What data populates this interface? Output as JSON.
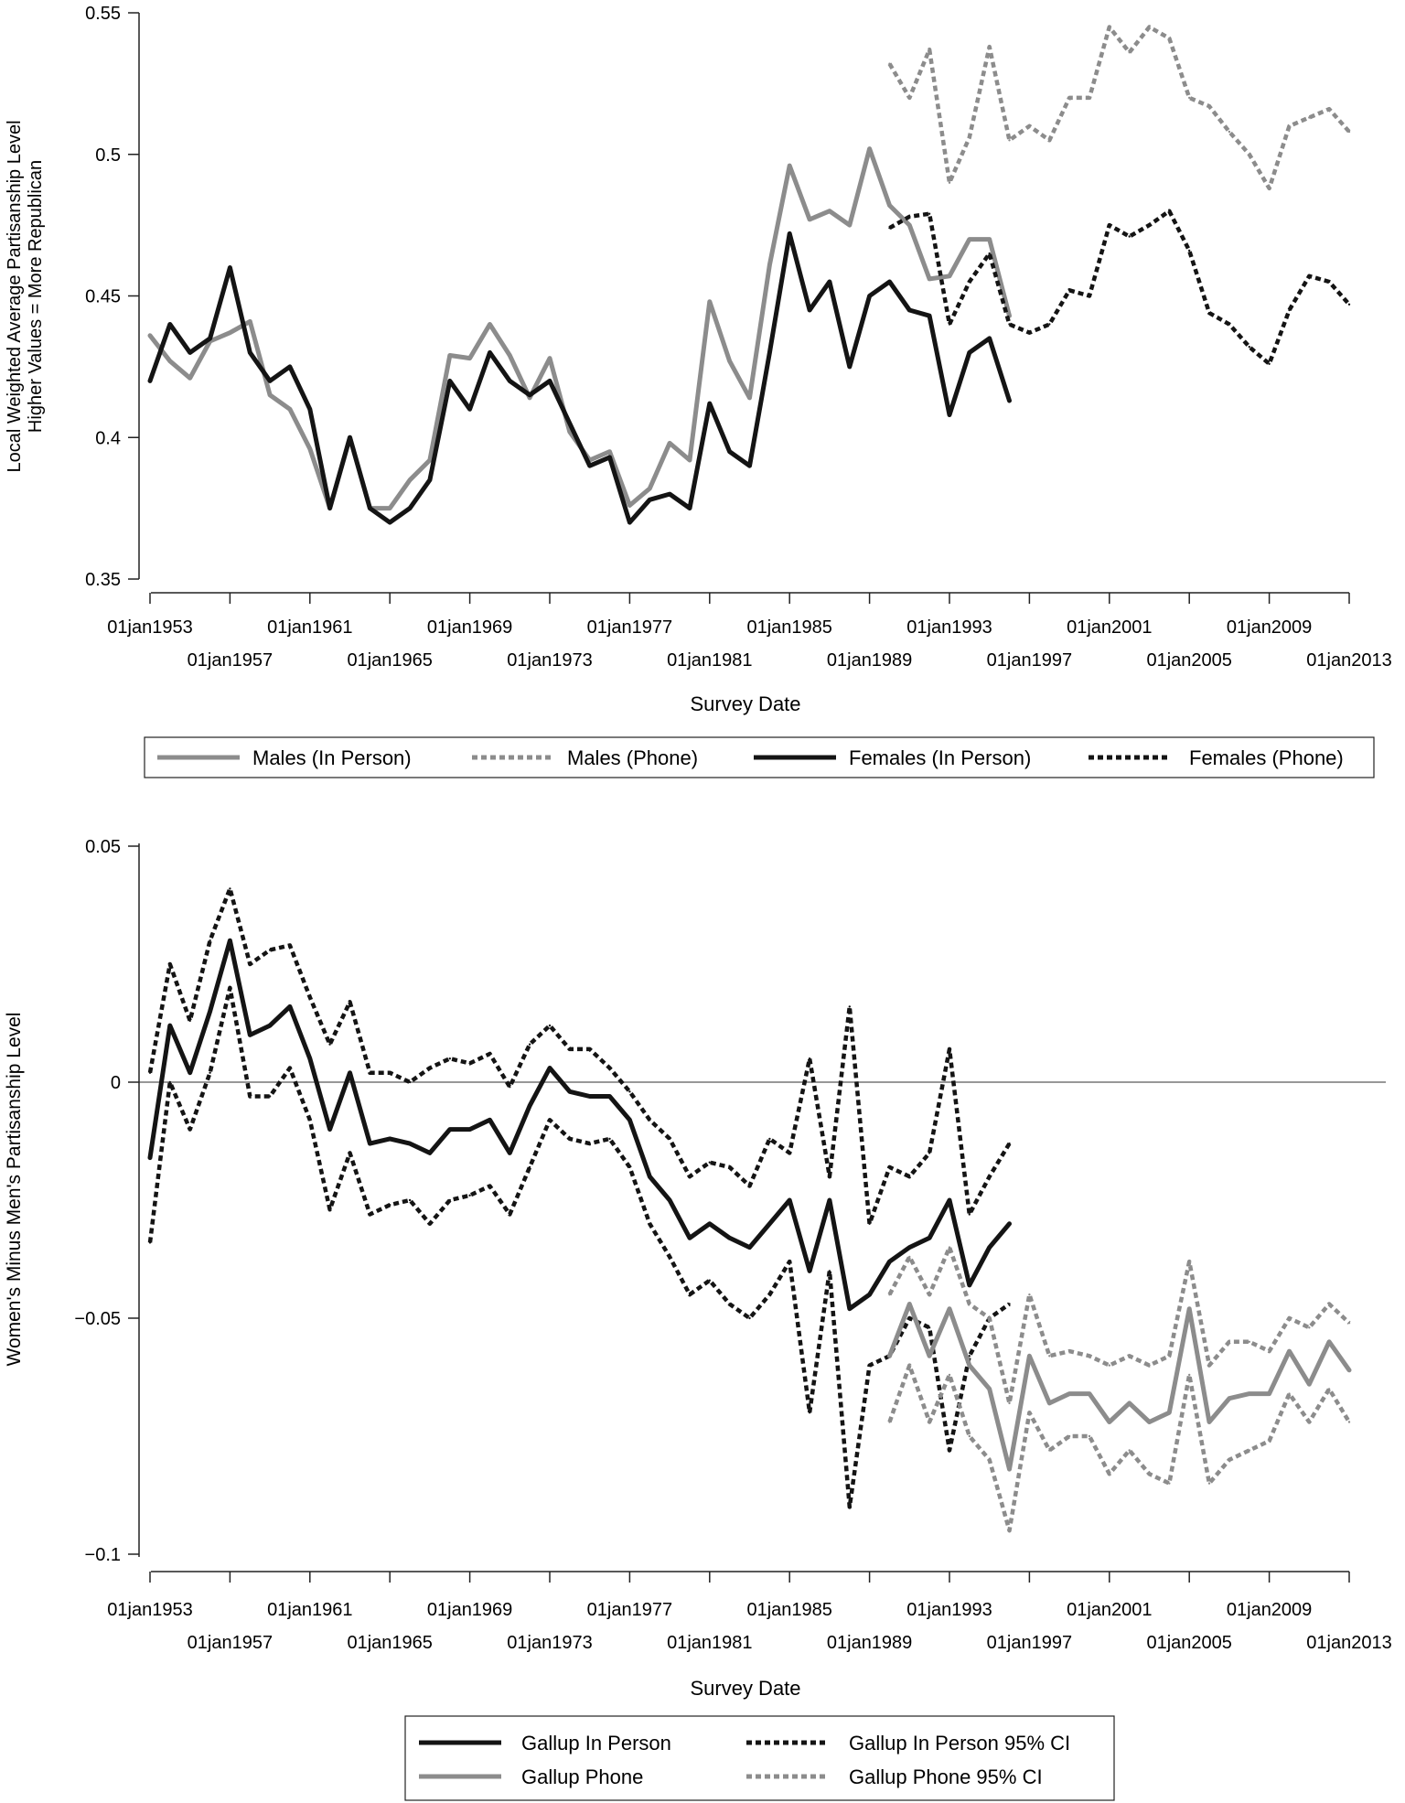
{
  "colors": {
    "gray": "#8c8c8c",
    "black": "#141414",
    "axis": "#222222",
    "zero_line": "#777777"
  },
  "chart_data": [
    {
      "type": "line",
      "title": "",
      "xlabel": "Survey Date",
      "ylabel_lines": [
        "Local Weighted Average Partisanship Level",
        "Higher Values = More Republican"
      ],
      "xlim": [
        1953,
        2013
      ],
      "ylim": [
        0.35,
        0.55
      ],
      "yticks": [
        0.35,
        0.4,
        0.45,
        0.5,
        0.55
      ],
      "ytick_labels": [
        "0.35",
        "0.4",
        "0.45",
        "0.5",
        "0.55"
      ],
      "xticks": [
        1953,
        1957,
        1961,
        1965,
        1969,
        1973,
        1977,
        1981,
        1985,
        1989,
        1993,
        1997,
        2001,
        2005,
        2009,
        2013
      ],
      "xtick_labels": [
        "01jan1953",
        "01jan1957",
        "01jan1961",
        "01jan1965",
        "01jan1969",
        "01jan1973",
        "01jan1977",
        "01jan1981",
        "01jan1985",
        "01jan1989",
        "01jan1993",
        "01jan1997",
        "01jan2001",
        "01jan2005",
        "01jan2009",
        "01jan2013"
      ],
      "legend_position": "bottom",
      "legend": [
        {
          "label": "Males (In Person)",
          "color": "gray",
          "style": "solid"
        },
        {
          "label": "Males (Phone)",
          "color": "gray",
          "style": "dotted"
        },
        {
          "label": "Females (In Person)",
          "color": "black",
          "style": "solid"
        },
        {
          "label": "Females (Phone)",
          "color": "black",
          "style": "dotted"
        }
      ],
      "series": [
        {
          "name": "Males (In Person)",
          "color": "gray",
          "style": "solid",
          "x": [
            1953,
            1954,
            1955,
            1956,
            1957,
            1958,
            1959,
            1960,
            1961,
            1962,
            1963,
            1964,
            1965,
            1966,
            1967,
            1968,
            1969,
            1970,
            1971,
            1972,
            1973,
            1974,
            1975,
            1976,
            1977,
            1978,
            1979,
            1980,
            1981,
            1982,
            1983,
            1984,
            1985,
            1986,
            1987,
            1988,
            1989,
            1990,
            1991,
            1992,
            1993,
            1994,
            1995,
            1996
          ],
          "y": [
            0.436,
            0.427,
            0.421,
            0.434,
            0.437,
            0.441,
            0.415,
            0.41,
            0.396,
            0.375,
            0.4,
            0.375,
            0.375,
            0.385,
            0.392,
            0.429,
            0.428,
            0.44,
            0.429,
            0.414,
            0.428,
            0.402,
            0.392,
            0.395,
            0.376,
            0.382,
            0.398,
            0.392,
            0.448,
            0.427,
            0.414,
            0.461,
            0.496,
            0.477,
            0.48,
            0.475,
            0.502,
            0.482,
            0.475,
            0.456,
            0.457,
            0.47,
            0.47,
            0.443
          ]
        },
        {
          "name": "Males (Phone)",
          "color": "gray",
          "style": "dotted",
          "x": [
            1990,
            1991,
            1992,
            1993,
            1994,
            1995,
            1996,
            1997,
            1998,
            1999,
            2000,
            2001,
            2002,
            2003,
            2004,
            2005,
            2006,
            2007,
            2008,
            2009,
            2010,
            2011,
            2012,
            2013
          ],
          "y": [
            0.532,
            0.52,
            0.537,
            0.49,
            0.506,
            0.538,
            0.505,
            0.51,
            0.505,
            0.52,
            0.52,
            0.545,
            0.536,
            0.545,
            0.541,
            0.52,
            0.517,
            0.508,
            0.5,
            0.488,
            0.51,
            0.513,
            0.516,
            0.508
          ]
        },
        {
          "name": "Females (In Person)",
          "color": "black",
          "style": "solid",
          "x": [
            1953,
            1954,
            1955,
            1956,
            1957,
            1958,
            1959,
            1960,
            1961,
            1962,
            1963,
            1964,
            1965,
            1966,
            1967,
            1968,
            1969,
            1970,
            1971,
            1972,
            1973,
            1974,
            1975,
            1976,
            1977,
            1978,
            1979,
            1980,
            1981,
            1982,
            1983,
            1984,
            1985,
            1986,
            1987,
            1988,
            1989,
            1990,
            1991,
            1992,
            1993,
            1994,
            1995,
            1996
          ],
          "y": [
            0.42,
            0.44,
            0.43,
            0.435,
            0.46,
            0.43,
            0.42,
            0.425,
            0.41,
            0.375,
            0.4,
            0.375,
            0.37,
            0.375,
            0.385,
            0.42,
            0.41,
            0.43,
            0.42,
            0.415,
            0.42,
            0.405,
            0.39,
            0.393,
            0.37,
            0.378,
            0.38,
            0.375,
            0.412,
            0.395,
            0.39,
            0.43,
            0.472,
            0.445,
            0.455,
            0.425,
            0.45,
            0.455,
            0.445,
            0.443,
            0.408,
            0.43,
            0.435,
            0.413
          ]
        },
        {
          "name": "Females (Phone)",
          "color": "black",
          "style": "dotted",
          "x": [
            1990,
            1991,
            1992,
            1993,
            1994,
            1995,
            1996,
            1997,
            1998,
            1999,
            2000,
            2001,
            2002,
            2003,
            2004,
            2005,
            2006,
            2007,
            2008,
            2009,
            2010,
            2011,
            2012,
            2013
          ],
          "y": [
            0.474,
            0.478,
            0.479,
            0.44,
            0.455,
            0.465,
            0.44,
            0.437,
            0.44,
            0.452,
            0.45,
            0.475,
            0.471,
            0.475,
            0.48,
            0.466,
            0.444,
            0.44,
            0.432,
            0.426,
            0.445,
            0.457,
            0.455,
            0.447
          ]
        }
      ]
    },
    {
      "type": "line",
      "title": "",
      "xlabel": "Survey Date",
      "ylabel": "Women's Minus Men's Partisanship Level",
      "xlim": [
        1953,
        2013
      ],
      "ylim": [
        -0.1,
        0.05
      ],
      "reference_line": 0,
      "yticks": [
        -0.1,
        -0.05,
        0,
        0.05
      ],
      "ytick_labels": [
        "−0.1",
        "−0.05",
        "0",
        "0.05"
      ],
      "xticks": [
        1953,
        1957,
        1961,
        1965,
        1969,
        1973,
        1977,
        1981,
        1985,
        1989,
        1993,
        1997,
        2001,
        2005,
        2009,
        2013
      ],
      "xtick_labels": [
        "01jan1953",
        "01jan1957",
        "01jan1961",
        "01jan1965",
        "01jan1969",
        "01jan1973",
        "01jan1977",
        "01jan1981",
        "01jan1985",
        "01jan1989",
        "01jan1993",
        "01jan1997",
        "01jan2001",
        "01jan2005",
        "01jan2009",
        "01jan2013"
      ],
      "legend_position": "bottom",
      "legend": [
        {
          "label": "Gallup In Person",
          "color": "black",
          "style": "solid"
        },
        {
          "label": "Gallup In Person 95% CI",
          "color": "black",
          "style": "dotted"
        },
        {
          "label": "Gallup Phone",
          "color": "gray",
          "style": "solid"
        },
        {
          "label": "Gallup Phone 95% CI",
          "color": "gray",
          "style": "dotted"
        }
      ],
      "series": [
        {
          "name": "Gallup In Person",
          "color": "black",
          "style": "solid",
          "x": [
            1953,
            1954,
            1955,
            1956,
            1957,
            1958,
            1959,
            1960,
            1961,
            1962,
            1963,
            1964,
            1965,
            1966,
            1967,
            1968,
            1969,
            1970,
            1971,
            1972,
            1973,
            1974,
            1975,
            1976,
            1977,
            1978,
            1979,
            1980,
            1981,
            1982,
            1983,
            1984,
            1985,
            1986,
            1987,
            1988,
            1989,
            1990,
            1991,
            1992,
            1993,
            1994,
            1995,
            1996
          ],
          "y": [
            -0.016,
            0.012,
            0.002,
            0.015,
            0.03,
            0.01,
            0.012,
            0.016,
            0.005,
            -0.01,
            0.002,
            -0.013,
            -0.012,
            -0.013,
            -0.015,
            -0.01,
            -0.01,
            -0.008,
            -0.015,
            -0.005,
            0.003,
            -0.002,
            -0.003,
            -0.003,
            -0.008,
            -0.02,
            -0.025,
            -0.033,
            -0.03,
            -0.033,
            -0.035,
            -0.03,
            -0.025,
            -0.04,
            -0.025,
            -0.048,
            -0.045,
            -0.038,
            -0.035,
            -0.033,
            -0.025,
            -0.043,
            -0.035,
            -0.03
          ]
        },
        {
          "name": "Gallup In Person 95% CI (upper)",
          "color": "black",
          "style": "dotted",
          "x": [
            1953,
            1954,
            1955,
            1956,
            1957,
            1958,
            1959,
            1960,
            1961,
            1962,
            1963,
            1964,
            1965,
            1966,
            1967,
            1968,
            1969,
            1970,
            1971,
            1972,
            1973,
            1974,
            1975,
            1976,
            1977,
            1978,
            1979,
            1980,
            1981,
            1982,
            1983,
            1984,
            1985,
            1986,
            1987,
            1988,
            1989,
            1990,
            1991,
            1992,
            1993,
            1994,
            1995,
            1996
          ],
          "y": [
            0.002,
            0.025,
            0.013,
            0.03,
            0.041,
            0.025,
            0.028,
            0.029,
            0.018,
            0.008,
            0.017,
            0.002,
            0.002,
            0.0,
            0.003,
            0.005,
            0.004,
            0.006,
            -0.001,
            0.008,
            0.012,
            0.007,
            0.007,
            0.003,
            -0.002,
            -0.008,
            -0.012,
            -0.02,
            -0.017,
            -0.018,
            -0.022,
            -0.012,
            -0.015,
            0.005,
            -0.02,
            0.016,
            -0.03,
            -0.018,
            -0.02,
            -0.015,
            0.007,
            -0.028,
            -0.02,
            -0.013
          ]
        },
        {
          "name": "Gallup In Person 95% CI (lower)",
          "color": "black",
          "style": "dotted",
          "x": [
            1953,
            1954,
            1955,
            1956,
            1957,
            1958,
            1959,
            1960,
            1961,
            1962,
            1963,
            1964,
            1965,
            1966,
            1967,
            1968,
            1969,
            1970,
            1971,
            1972,
            1973,
            1974,
            1975,
            1976,
            1977,
            1978,
            1979,
            1980,
            1981,
            1982,
            1983,
            1984,
            1985,
            1986,
            1987,
            1988,
            1989,
            1990,
            1991,
            1992,
            1993,
            1994,
            1995,
            1996
          ],
          "y": [
            -0.034,
            0.0,
            -0.01,
            0.002,
            0.02,
            -0.003,
            -0.003,
            0.003,
            -0.008,
            -0.027,
            -0.015,
            -0.028,
            -0.026,
            -0.025,
            -0.03,
            -0.025,
            -0.024,
            -0.022,
            -0.028,
            -0.018,
            -0.008,
            -0.012,
            -0.013,
            -0.012,
            -0.018,
            -0.03,
            -0.037,
            -0.045,
            -0.042,
            -0.047,
            -0.05,
            -0.045,
            -0.038,
            -0.07,
            -0.04,
            -0.09,
            -0.06,
            -0.058,
            -0.05,
            -0.052,
            -0.078,
            -0.058,
            -0.05,
            -0.047
          ]
        },
        {
          "name": "Gallup Phone",
          "color": "gray",
          "style": "solid",
          "x": [
            1990,
            1991,
            1992,
            1993,
            1994,
            1995,
            1996,
            1997,
            1998,
            1999,
            2000,
            2001,
            2002,
            2003,
            2004,
            2005,
            2006,
            2007,
            2008,
            2009,
            2010,
            2011,
            2012,
            2013
          ],
          "y": [
            -0.058,
            -0.047,
            -0.058,
            -0.048,
            -0.06,
            -0.065,
            -0.082,
            -0.058,
            -0.068,
            -0.066,
            -0.066,
            -0.072,
            -0.068,
            -0.072,
            -0.07,
            -0.048,
            -0.072,
            -0.067,
            -0.066,
            -0.066,
            -0.057,
            -0.064,
            -0.055,
            -0.061
          ]
        },
        {
          "name": "Gallup Phone 95% CI (upper)",
          "color": "gray",
          "style": "dotted",
          "x": [
            1990,
            1991,
            1992,
            1993,
            1994,
            1995,
            1996,
            1997,
            1998,
            1999,
            2000,
            2001,
            2002,
            2003,
            2004,
            2005,
            2006,
            2007,
            2008,
            2009,
            2010,
            2011,
            2012,
            2013
          ],
          "y": [
            -0.045,
            -0.037,
            -0.045,
            -0.035,
            -0.047,
            -0.05,
            -0.068,
            -0.045,
            -0.058,
            -0.057,
            -0.058,
            -0.06,
            -0.058,
            -0.06,
            -0.058,
            -0.038,
            -0.06,
            -0.055,
            -0.055,
            -0.057,
            -0.05,
            -0.052,
            -0.047,
            -0.051
          ]
        },
        {
          "name": "Gallup Phone 95% CI (lower)",
          "color": "gray",
          "style": "dotted",
          "x": [
            1990,
            1991,
            1992,
            1993,
            1994,
            1995,
            1996,
            1997,
            1998,
            1999,
            2000,
            2001,
            2002,
            2003,
            2004,
            2005,
            2006,
            2007,
            2008,
            2009,
            2010,
            2011,
            2012,
            2013
          ],
          "y": [
            -0.072,
            -0.06,
            -0.072,
            -0.062,
            -0.075,
            -0.08,
            -0.095,
            -0.07,
            -0.078,
            -0.075,
            -0.075,
            -0.083,
            -0.078,
            -0.083,
            -0.085,
            -0.062,
            -0.085,
            -0.08,
            -0.078,
            -0.076,
            -0.066,
            -0.072,
            -0.065,
            -0.072
          ]
        }
      ]
    }
  ]
}
